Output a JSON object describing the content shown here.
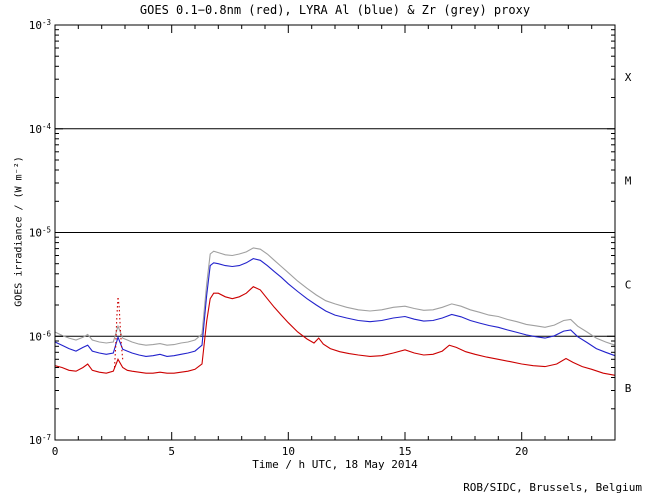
{
  "footer": "ROB/SIDC, Brussels, Belgium",
  "chart_data": {
    "type": "line",
    "title": "GOES 0.1−0.8nm (red), LYRA Al (blue) & Zr (grey) proxy",
    "xlabel": "Time / h UTC, 18 May 2014",
    "ylabel": "GOES irradiance / (W m⁻²)",
    "x_range": [
      0,
      24
    ],
    "x_major_ticks": [
      0,
      5,
      10,
      15,
      20
    ],
    "x_minor_step": 1,
    "y_scale": "log",
    "y_range_exponents": [
      -7,
      -3
    ],
    "y_tick_exponents": [
      -3,
      -4,
      -5,
      -6,
      -7
    ],
    "reference_lines": [
      0.0001,
      1e-05,
      1e-06
    ],
    "grid": "off",
    "legend_position": "in-title",
    "flare_classes": [
      {
        "label": "X",
        "between": [
          -4,
          -3
        ]
      },
      {
        "label": "M",
        "between": [
          -5,
          -4
        ]
      },
      {
        "label": "C",
        "between": [
          -6,
          -5
        ]
      },
      {
        "label": "B",
        "between": [
          -7,
          -6
        ]
      }
    ],
    "series": [
      {
        "id": "lyra-zr",
        "name": "LYRA Zr proxy",
        "color": "#a0a0a0",
        "style": "solid",
        "points": [
          [
            0,
            1.1e-06
          ],
          [
            0.3,
            1.02e-06
          ],
          [
            0.6,
            9.6e-07
          ],
          [
            0.9,
            9.2e-07
          ],
          [
            1.2,
            9.8e-07
          ],
          [
            1.4,
            1.04e-06
          ],
          [
            1.6,
            9.2e-07
          ],
          [
            1.9,
            8.8e-07
          ],
          [
            2.2,
            8.6e-07
          ],
          [
            2.5,
            8.8e-07
          ],
          [
            2.7,
            1.25e-06
          ],
          [
            2.9,
            9.6e-07
          ],
          [
            3.1,
            9.2e-07
          ],
          [
            3.3,
            8.8e-07
          ],
          [
            3.6,
            8.4e-07
          ],
          [
            3.9,
            8.2e-07
          ],
          [
            4.2,
            8.3e-07
          ],
          [
            4.5,
            8.5e-07
          ],
          [
            4.8,
            8.2e-07
          ],
          [
            5.1,
            8.3e-07
          ],
          [
            5.4,
            8.6e-07
          ],
          [
            5.7,
            8.8e-07
          ],
          [
            6.0,
            9.2e-07
          ],
          [
            6.3,
            1.05e-06
          ],
          [
            6.5,
            3.2e-06
          ],
          [
            6.65,
            6.2e-06
          ],
          [
            6.8,
            6.6e-06
          ],
          [
            7.0,
            6.4e-06
          ],
          [
            7.3,
            6.1e-06
          ],
          [
            7.6,
            6e-06
          ],
          [
            7.9,
            6.2e-06
          ],
          [
            8.2,
            6.5e-06
          ],
          [
            8.5,
            7.1e-06
          ],
          [
            8.8,
            6.9e-06
          ],
          [
            9.1,
            6.2e-06
          ],
          [
            9.4,
            5.4e-06
          ],
          [
            9.7,
            4.7e-06
          ],
          [
            10.0,
            4.1e-06
          ],
          [
            10.4,
            3.4e-06
          ],
          [
            10.8,
            2.9e-06
          ],
          [
            11.2,
            2.5e-06
          ],
          [
            11.6,
            2.2e-06
          ],
          [
            12.0,
            2.05e-06
          ],
          [
            12.5,
            1.9e-06
          ],
          [
            13.0,
            1.8e-06
          ],
          [
            13.5,
            1.75e-06
          ],
          [
            14.0,
            1.8e-06
          ],
          [
            14.5,
            1.9e-06
          ],
          [
            15.0,
            1.95e-06
          ],
          [
            15.4,
            1.85e-06
          ],
          [
            15.8,
            1.78e-06
          ],
          [
            16.2,
            1.8e-06
          ],
          [
            16.6,
            1.9e-06
          ],
          [
            17.0,
            2.05e-06
          ],
          [
            17.4,
            1.95e-06
          ],
          [
            17.8,
            1.8e-06
          ],
          [
            18.2,
            1.7e-06
          ],
          [
            18.6,
            1.6e-06
          ],
          [
            19.0,
            1.55e-06
          ],
          [
            19.4,
            1.45e-06
          ],
          [
            19.8,
            1.38e-06
          ],
          [
            20.2,
            1.3e-06
          ],
          [
            20.6,
            1.26e-06
          ],
          [
            21.0,
            1.22e-06
          ],
          [
            21.4,
            1.28e-06
          ],
          [
            21.8,
            1.42e-06
          ],
          [
            22.1,
            1.45e-06
          ],
          [
            22.4,
            1.25e-06
          ],
          [
            22.8,
            1.1e-06
          ],
          [
            23.2,
            9.6e-07
          ],
          [
            23.6,
            8.8e-07
          ],
          [
            24,
            8.2e-07
          ]
        ]
      },
      {
        "id": "lyra-al",
        "name": "LYRA Al proxy",
        "color": "#2222cc",
        "style": "solid",
        "points": [
          [
            0,
            8.8e-07
          ],
          [
            0.3,
            8.2e-07
          ],
          [
            0.6,
            7.6e-07
          ],
          [
            0.9,
            7.2e-07
          ],
          [
            1.2,
            7.8e-07
          ],
          [
            1.4,
            8.2e-07
          ],
          [
            1.6,
            7.2e-07
          ],
          [
            1.9,
            6.9e-07
          ],
          [
            2.2,
            6.7e-07
          ],
          [
            2.5,
            6.9e-07
          ],
          [
            2.7,
            9.8e-07
          ],
          [
            2.9,
            7.5e-07
          ],
          [
            3.1,
            7.2e-07
          ],
          [
            3.3,
            6.9e-07
          ],
          [
            3.6,
            6.6e-07
          ],
          [
            3.9,
            6.4e-07
          ],
          [
            4.2,
            6.5e-07
          ],
          [
            4.5,
            6.7e-07
          ],
          [
            4.8,
            6.4e-07
          ],
          [
            5.1,
            6.5e-07
          ],
          [
            5.4,
            6.7e-07
          ],
          [
            5.7,
            6.9e-07
          ],
          [
            6.0,
            7.2e-07
          ],
          [
            6.3,
            8.2e-07
          ],
          [
            6.5,
            2.5e-06
          ],
          [
            6.65,
            4.8e-06
          ],
          [
            6.8,
            5.1e-06
          ],
          [
            7.0,
            5e-06
          ],
          [
            7.3,
            4.8e-06
          ],
          [
            7.6,
            4.7e-06
          ],
          [
            7.9,
            4.8e-06
          ],
          [
            8.2,
            5.1e-06
          ],
          [
            8.5,
            5.6e-06
          ],
          [
            8.8,
            5.4e-06
          ],
          [
            9.1,
            4.8e-06
          ],
          [
            9.4,
            4.2e-06
          ],
          [
            9.7,
            3.7e-06
          ],
          [
            10.0,
            3.2e-06
          ],
          [
            10.4,
            2.7e-06
          ],
          [
            10.8,
            2.3e-06
          ],
          [
            11.2,
            2e-06
          ],
          [
            11.6,
            1.75e-06
          ],
          [
            12.0,
            1.6e-06
          ],
          [
            12.5,
            1.5e-06
          ],
          [
            13.0,
            1.42e-06
          ],
          [
            13.5,
            1.38e-06
          ],
          [
            14.0,
            1.42e-06
          ],
          [
            14.5,
            1.5e-06
          ],
          [
            15.0,
            1.55e-06
          ],
          [
            15.4,
            1.46e-06
          ],
          [
            15.8,
            1.4e-06
          ],
          [
            16.2,
            1.42e-06
          ],
          [
            16.6,
            1.5e-06
          ],
          [
            17.0,
            1.62e-06
          ],
          [
            17.4,
            1.54e-06
          ],
          [
            17.8,
            1.42e-06
          ],
          [
            18.2,
            1.34e-06
          ],
          [
            18.6,
            1.27e-06
          ],
          [
            19.0,
            1.22e-06
          ],
          [
            19.4,
            1.15e-06
          ],
          [
            19.8,
            1.09e-06
          ],
          [
            20.2,
            1.03e-06
          ],
          [
            20.6,
            9.9e-07
          ],
          [
            21.0,
            9.6e-07
          ],
          [
            21.4,
            1.01e-06
          ],
          [
            21.8,
            1.12e-06
          ],
          [
            22.1,
            1.15e-06
          ],
          [
            22.4,
            9.9e-07
          ],
          [
            22.8,
            8.7e-07
          ],
          [
            23.2,
            7.6e-07
          ],
          [
            23.6,
            7e-07
          ],
          [
            24,
            6.5e-07
          ]
        ]
      },
      {
        "id": "goes",
        "name": "GOES 0.1-0.8nm",
        "color": "#cc0000",
        "style": "solid",
        "points": [
          [
            0,
            5.2e-07
          ],
          [
            0.3,
            5e-07
          ],
          [
            0.6,
            4.7e-07
          ],
          [
            0.9,
            4.6e-07
          ],
          [
            1.2,
            5e-07
          ],
          [
            1.4,
            5.4e-07
          ],
          [
            1.6,
            4.7e-07
          ],
          [
            1.9,
            4.5e-07
          ],
          [
            2.2,
            4.4e-07
          ],
          [
            2.5,
            4.6e-07
          ],
          [
            2.7,
            6e-07
          ],
          [
            2.9,
            5e-07
          ],
          [
            3.1,
            4.7e-07
          ],
          [
            3.3,
            4.6e-07
          ],
          [
            3.6,
            4.5e-07
          ],
          [
            3.9,
            4.4e-07
          ],
          [
            4.2,
            4.4e-07
          ],
          [
            4.5,
            4.5e-07
          ],
          [
            4.8,
            4.4e-07
          ],
          [
            5.1,
            4.4e-07
          ],
          [
            5.4,
            4.5e-07
          ],
          [
            5.7,
            4.6e-07
          ],
          [
            6.0,
            4.8e-07
          ],
          [
            6.3,
            5.4e-07
          ],
          [
            6.5,
            1.4e-06
          ],
          [
            6.65,
            2.3e-06
          ],
          [
            6.8,
            2.6e-06
          ],
          [
            7.0,
            2.6e-06
          ],
          [
            7.3,
            2.4e-06
          ],
          [
            7.6,
            2.3e-06
          ],
          [
            7.9,
            2.4e-06
          ],
          [
            8.2,
            2.6e-06
          ],
          [
            8.5,
            3e-06
          ],
          [
            8.8,
            2.8e-06
          ],
          [
            9.1,
            2.3e-06
          ],
          [
            9.4,
            1.9e-06
          ],
          [
            9.7,
            1.6e-06
          ],
          [
            10.0,
            1.35e-06
          ],
          [
            10.4,
            1.1e-06
          ],
          [
            10.8,
            9.4e-07
          ],
          [
            11.1,
            8.6e-07
          ],
          [
            11.3,
            9.6e-07
          ],
          [
            11.5,
            8.4e-07
          ],
          [
            11.8,
            7.6e-07
          ],
          [
            12.2,
            7.1e-07
          ],
          [
            12.6,
            6.8e-07
          ],
          [
            13.0,
            6.6e-07
          ],
          [
            13.5,
            6.4e-07
          ],
          [
            14.0,
            6.5e-07
          ],
          [
            14.5,
            6.9e-07
          ],
          [
            15.0,
            7.4e-07
          ],
          [
            15.4,
            6.9e-07
          ],
          [
            15.8,
            6.6e-07
          ],
          [
            16.2,
            6.7e-07
          ],
          [
            16.6,
            7.2e-07
          ],
          [
            16.9,
            8.2e-07
          ],
          [
            17.2,
            7.8e-07
          ],
          [
            17.6,
            7.1e-07
          ],
          [
            18.0,
            6.7e-07
          ],
          [
            18.5,
            6.3e-07
          ],
          [
            19.0,
            6e-07
          ],
          [
            19.5,
            5.7e-07
          ],
          [
            20.0,
            5.4e-07
          ],
          [
            20.5,
            5.2e-07
          ],
          [
            21.0,
            5.1e-07
          ],
          [
            21.5,
            5.4e-07
          ],
          [
            21.9,
            6.1e-07
          ],
          [
            22.2,
            5.6e-07
          ],
          [
            22.6,
            5.1e-07
          ],
          [
            23.0,
            4.8e-07
          ],
          [
            23.5,
            4.4e-07
          ],
          [
            24,
            4.2e-07
          ]
        ]
      },
      {
        "id": "goes-spike",
        "name": "GOES spike (dotted)",
        "color": "#cc0000",
        "style": "dotted",
        "points": [
          [
            2.55,
            5e-07
          ],
          [
            2.6,
            8e-07
          ],
          [
            2.65,
            1.5e-06
          ],
          [
            2.7,
            2.4e-06
          ],
          [
            2.75,
            1.9e-06
          ],
          [
            2.8,
            1.2e-06
          ],
          [
            2.85,
            8e-07
          ],
          [
            2.9,
            6e-07
          ]
        ]
      }
    ]
  }
}
